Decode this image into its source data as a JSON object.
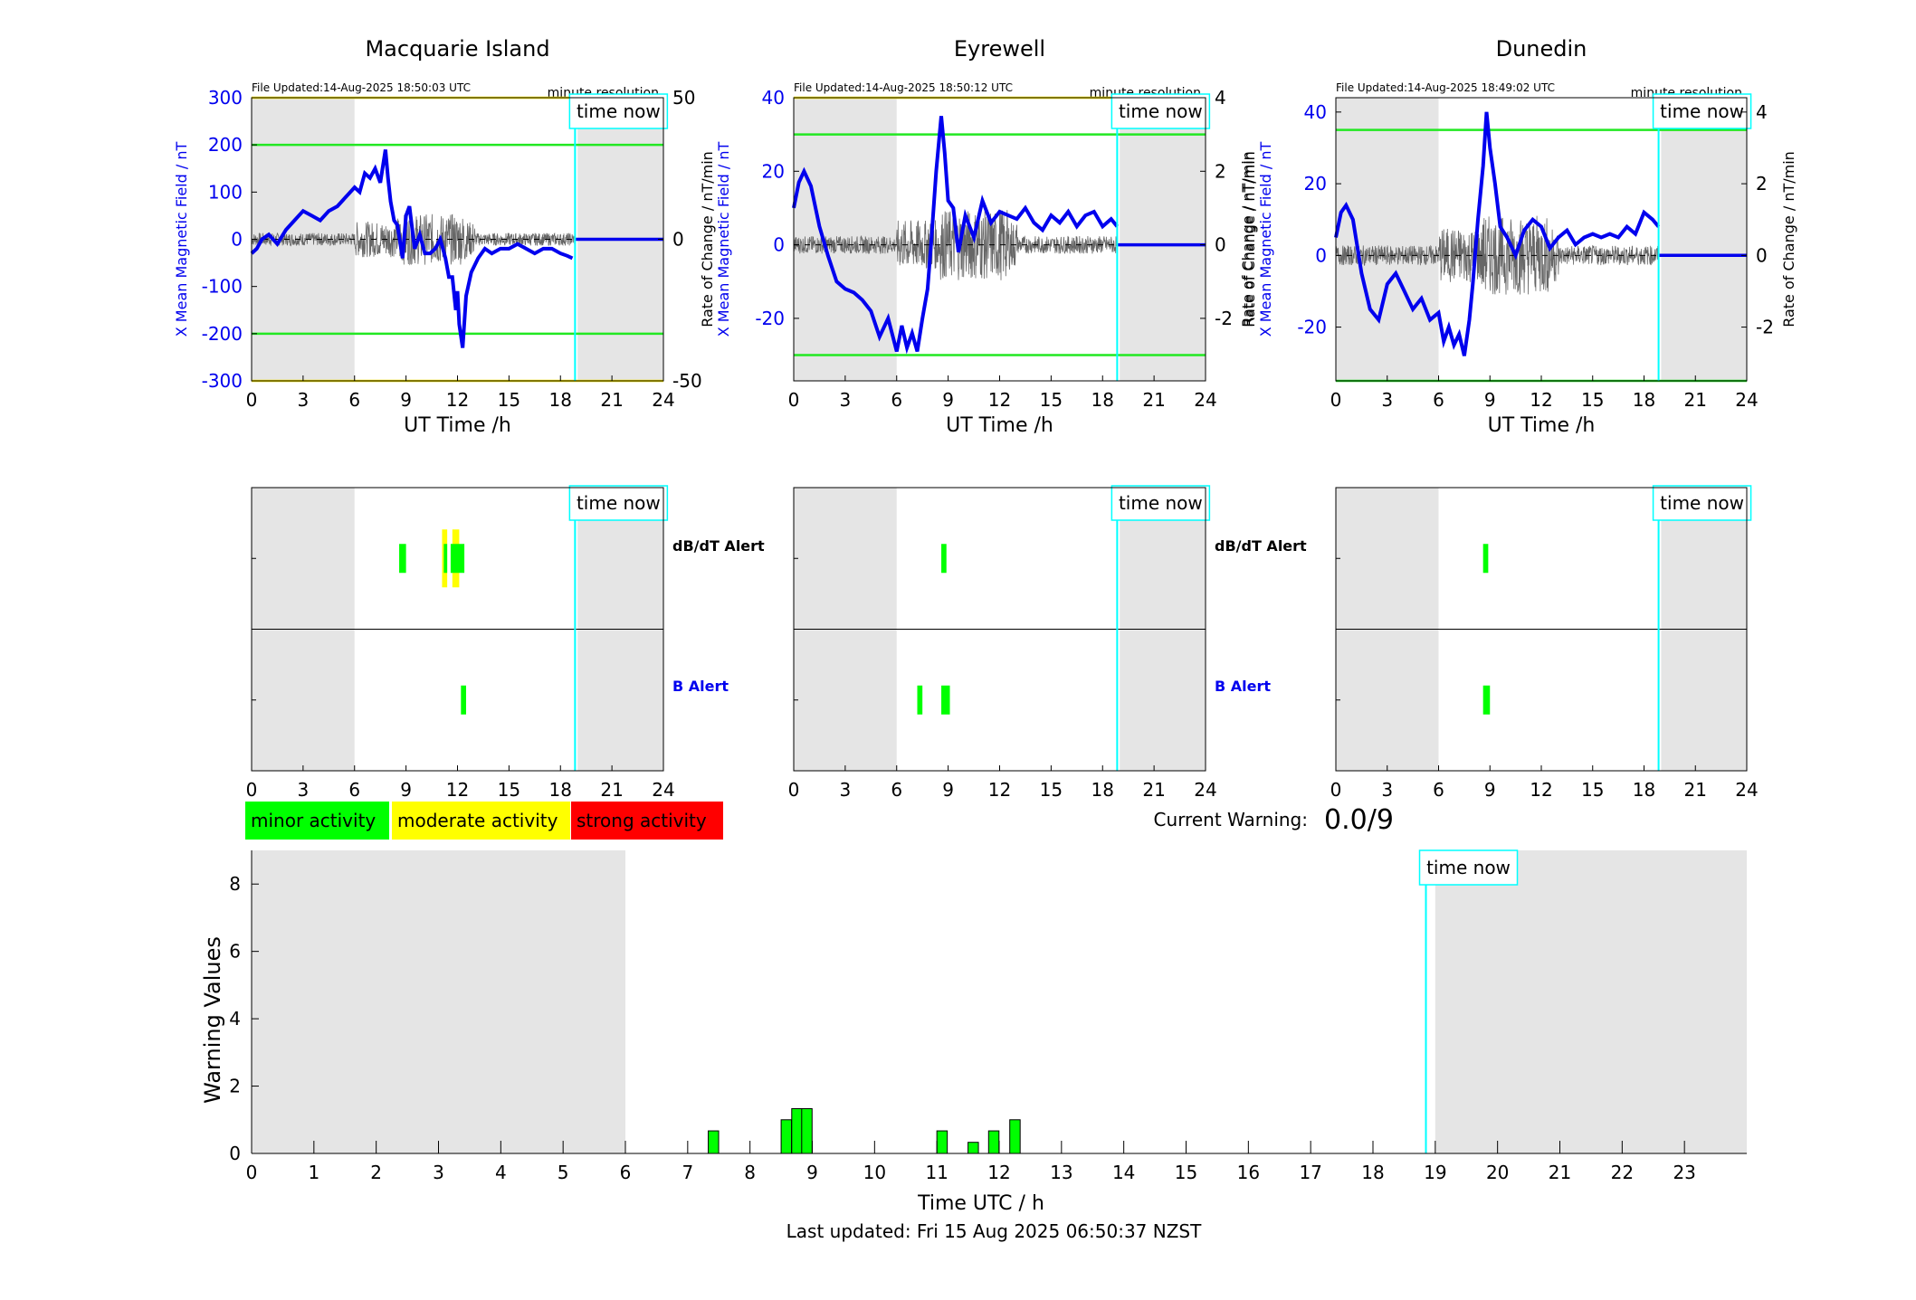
{
  "window": {
    "width": 2117,
    "height": 1437
  },
  "labels": {
    "xlabel_top": "UT Time /h",
    "ylabel_left": "X Mean Magnetic Field / nT",
    "ylabel_right": "Rate of Change / nT/min",
    "time_now": "time now",
    "minute_resolution": "minute resolution",
    "dbdt_alert": "dB/dT Alert",
    "b_alert": "B Alert"
  },
  "legend": [
    {
      "label": "minor activity",
      "color": "#00ff00"
    },
    {
      "label": "moderate activity",
      "color": "#ffff00"
    },
    {
      "label": "strong activity",
      "color": "#ff0000"
    }
  ],
  "current_warning": {
    "label": "Current Warning:",
    "value": "0.0/9"
  },
  "last_updated": "Last updated: Fri 15 Aug 2025 06:50:37 NZST",
  "colors": {
    "field": "#0000ee",
    "night": "#e5e5e5",
    "now": "#00ffff",
    "minor": "#00ff00",
    "moderate": "#ffff00",
    "strong": "#ff0000",
    "raw": "#666666"
  },
  "chart_data": [
    {
      "type": "line",
      "title": "Macquarie Island",
      "file_updated": "File Updated:14-Aug-2025 18:50:03 UTC",
      "xlabel": "UT Time /h",
      "ylabel": "X Mean Magnetic Field / nT",
      "y2label": "",
      "xlim": [
        0,
        24
      ],
      "xticks": [
        0,
        3,
        6,
        9,
        12,
        15,
        18,
        21,
        24
      ],
      "ylim": [
        -300,
        300
      ],
      "yticks": [
        -300,
        -200,
        -100,
        0,
        100,
        200,
        300
      ],
      "y2lim": [
        -50,
        50
      ],
      "y2ticks": [
        -50,
        0,
        50
      ],
      "night": [
        [
          0,
          6
        ],
        [
          19,
          24
        ]
      ],
      "time_now": 18.85,
      "thresholds": [
        {
          "y": 300,
          "color": "yellow"
        },
        {
          "y": 200,
          "color": "green"
        },
        {
          "y": -200,
          "color": "green"
        },
        {
          "y": -300,
          "color": "yellow"
        }
      ],
      "series": [
        {
          "x": [
            0,
            0.3,
            0.6,
            1,
            1.5,
            2,
            2.5,
            3,
            3.5,
            4,
            4.5,
            5,
            5.5,
            6,
            6.3,
            6.6,
            6.9,
            7.2,
            7.5,
            7.8,
            7.95,
            8.1,
            8.3,
            8.5,
            8.8,
            9.0,
            9.2,
            9.5,
            9.8,
            10.1,
            10.4,
            10.7,
            11.0,
            11.3,
            11.5,
            11.7,
            11.9,
            12.0,
            12.1,
            12.3,
            12.5,
            12.8,
            13.2,
            13.6,
            14,
            14.5,
            15,
            15.5,
            16,
            16.5,
            17,
            17.5,
            18,
            18.4,
            18.7
          ],
          "y": [
            -30,
            -20,
            0,
            10,
            -10,
            20,
            40,
            60,
            50,
            40,
            60,
            70,
            90,
            110,
            100,
            140,
            130,
            150,
            120,
            190,
            130,
            80,
            40,
            30,
            -40,
            50,
            70,
            -20,
            10,
            -30,
            -30,
            -20,
            0,
            -40,
            -80,
            -80,
            -150,
            -110,
            -180,
            -230,
            -120,
            -70,
            -40,
            -20,
            -30,
            -20,
            -20,
            -10,
            -20,
            -30,
            -20,
            -20,
            -30,
            -35,
            -40
          ]
        },
        {
          "x": [
            18.85,
            24
          ],
          "y": [
            0,
            0
          ]
        }
      ]
    },
    {
      "type": "line",
      "title": "Eyrewell",
      "file_updated": "File Updated:14-Aug-2025 18:50:12 UTC",
      "xlabel": "UT Time /h",
      "ylabel": "X Mean Magnetic Field / nT",
      "y2label": "Rate of Change / nT/min",
      "xlim": [
        0,
        24
      ],
      "xticks": [
        0,
        3,
        6,
        9,
        12,
        15,
        18,
        21,
        24
      ],
      "ylim": [
        -37,
        40
      ],
      "yticks": [
        -20,
        0,
        20,
        40
      ],
      "y2lim": [
        -3.7,
        4
      ],
      "y2ticks": [
        -2,
        0,
        2,
        4
      ],
      "night": [
        [
          0,
          6
        ],
        [
          19,
          24
        ]
      ],
      "time_now": 18.85,
      "thresholds": [
        {
          "y": 40,
          "color": "yellow"
        },
        {
          "y": 30,
          "color": "green"
        },
        {
          "y": -30,
          "color": "green"
        }
      ],
      "series": [
        {
          "x": [
            0,
            0.3,
            0.6,
            1.0,
            1.5,
            2.0,
            2.5,
            3.0,
            3.5,
            4.0,
            4.5,
            5.0,
            5.5,
            6.0,
            6.3,
            6.6,
            6.9,
            7.2,
            7.5,
            7.8,
            8.0,
            8.3,
            8.6,
            8.8,
            9.0,
            9.3,
            9.6,
            10.0,
            10.5,
            11.0,
            11.5,
            12.0,
            12.5,
            13.0,
            13.5,
            14.0,
            14.5,
            15.0,
            15.5,
            16.0,
            16.5,
            17.0,
            17.5,
            18.0,
            18.5,
            18.85
          ],
          "y": [
            10,
            17,
            20,
            16,
            5,
            -3,
            -10,
            -12,
            -13,
            -15,
            -18,
            -25,
            -20,
            -29,
            -22,
            -28,
            -24,
            -29,
            -20,
            -12,
            0,
            20,
            35,
            25,
            12,
            10,
            -2,
            8,
            2,
            12,
            6,
            9,
            8,
            7,
            10,
            6,
            4,
            8,
            6,
            9,
            5,
            8,
            9,
            5,
            7,
            5
          ]
        },
        {
          "x": [
            18.85,
            24
          ],
          "y": [
            0,
            0
          ]
        }
      ]
    },
    {
      "type": "line",
      "title": "Dunedin",
      "file_updated": "File Updated:14-Aug-2025 18:49:02 UTC",
      "xlabel": "UT Time /h",
      "ylabel": "X Mean Magnetic Field / nT",
      "y2label": "Rate of Change / nT/min",
      "xlim": [
        0,
        24
      ],
      "xticks": [
        0,
        3,
        6,
        9,
        12,
        15,
        18,
        21,
        24
      ],
      "ylim": [
        -35,
        44
      ],
      "yticks": [
        -20,
        0,
        20,
        40
      ],
      "y2lim": [
        -3.5,
        4.4
      ],
      "y2ticks": [
        -2,
        0,
        2,
        4
      ],
      "night": [
        [
          0,
          6
        ],
        [
          19,
          24
        ]
      ],
      "time_now": 18.85,
      "thresholds": [
        {
          "y": 35,
          "color": "green"
        },
        {
          "y": -35,
          "color": "green"
        }
      ],
      "series": [
        {
          "x": [
            0,
            0.3,
            0.6,
            1.0,
            1.5,
            2.0,
            2.5,
            3.0,
            3.5,
            4.0,
            4.5,
            5.0,
            5.5,
            6.0,
            6.3,
            6.6,
            6.9,
            7.2,
            7.5,
            7.8,
            8.0,
            8.3,
            8.6,
            8.8,
            9.0,
            9.3,
            9.6,
            10.0,
            10.5,
            11.0,
            11.5,
            12.0,
            12.5,
            13.0,
            13.5,
            14.0,
            14.5,
            15.0,
            15.5,
            16.0,
            16.5,
            17.0,
            17.5,
            18.0,
            18.5,
            18.85
          ],
          "y": [
            5,
            12,
            14,
            10,
            -5,
            -15,
            -18,
            -8,
            -5,
            -10,
            -15,
            -12,
            -18,
            -16,
            -24,
            -20,
            -25,
            -22,
            -28,
            -18,
            -8,
            10,
            25,
            40,
            30,
            20,
            8,
            5,
            0,
            7,
            10,
            8,
            2,
            5,
            7,
            3,
            5,
            6,
            5,
            6,
            5,
            8,
            6,
            12,
            10,
            8
          ]
        },
        {
          "x": [
            18.85,
            24
          ],
          "y": [
            0,
            0
          ]
        }
      ]
    },
    {
      "type": "bar",
      "title": "",
      "xlabel": "Time UTC / h",
      "ylabel": "Warning Values",
      "xlim": [
        0,
        24
      ],
      "xticks": [
        0,
        1,
        2,
        3,
        4,
        5,
        6,
        7,
        8,
        9,
        10,
        11,
        12,
        13,
        14,
        15,
        16,
        17,
        18,
        19,
        20,
        21,
        22,
        23
      ],
      "ylim": [
        0,
        9
      ],
      "yticks": [
        0,
        2,
        4,
        6,
        8
      ],
      "night": [
        [
          0,
          6
        ],
        [
          19,
          24
        ]
      ],
      "time_now": 18.85,
      "bars": [
        {
          "x": 7.33,
          "value": 0.67
        },
        {
          "x": 8.5,
          "value": 1.0
        },
        {
          "x": 8.67,
          "value": 1.33
        },
        {
          "x": 8.83,
          "value": 1.33
        },
        {
          "x": 11.0,
          "value": 0.67
        },
        {
          "x": 11.5,
          "value": 0.33
        },
        {
          "x": 11.83,
          "value": 0.67
        },
        {
          "x": 12.17,
          "value": 1.0
        }
      ]
    }
  ],
  "alert_data": [
    {
      "dbdt": [
        {
          "x0": 8.6,
          "x1": 9.0,
          "level": "minor"
        },
        {
          "x0": 11.1,
          "x1": 11.4,
          "level": "moderate"
        },
        {
          "x0": 11.2,
          "x1": 11.4,
          "level": "minor"
        },
        {
          "x0": 11.7,
          "x1": 12.1,
          "level": "moderate"
        },
        {
          "x0": 11.6,
          "x1": 12.4,
          "level": "minor"
        }
      ],
      "b": [
        {
          "x0": 12.2,
          "x1": 12.5,
          "level": "minor"
        }
      ]
    },
    {
      "dbdt": [
        {
          "x0": 8.6,
          "x1": 8.9,
          "level": "minor"
        }
      ],
      "b": [
        {
          "x0": 7.2,
          "x1": 7.5,
          "level": "minor"
        },
        {
          "x0": 8.6,
          "x1": 9.1,
          "level": "minor"
        }
      ]
    },
    {
      "dbdt": [
        {
          "x0": 8.6,
          "x1": 8.9,
          "level": "minor"
        }
      ],
      "b": [
        {
          "x0": 8.6,
          "x1": 9.0,
          "level": "minor"
        }
      ]
    }
  ]
}
